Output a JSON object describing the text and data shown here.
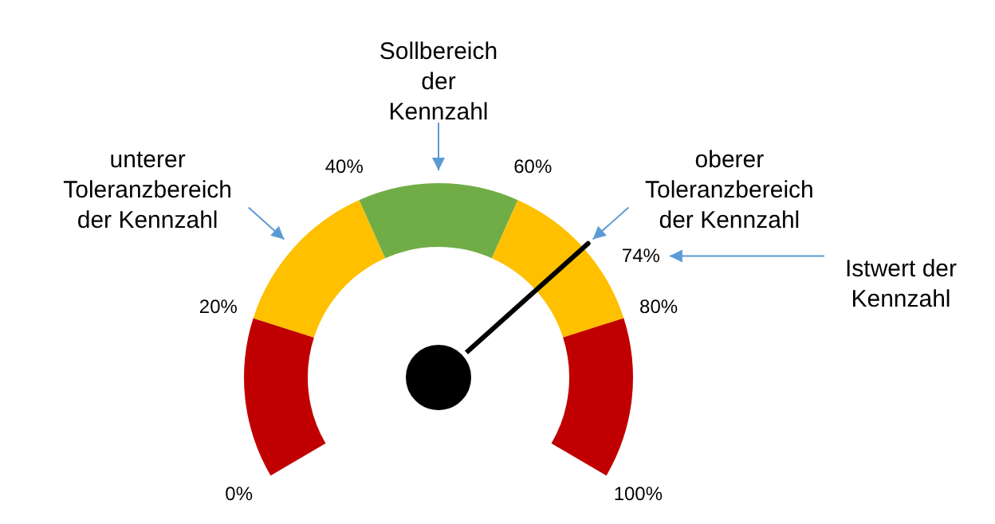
{
  "chart_data": {
    "type": "donut",
    "categories": [
      null,
      "unterer\nToleranzbereich\nder Kennzahl",
      "Sollbereich\nder\nKennzahl",
      "oberer\nToleranzbereich\nder Kennzahl",
      null
    ],
    "values": [
      20,
      20,
      20,
      20,
      20
    ],
    "colors": [
      "#c00000",
      "#ffc000",
      "#70ad47",
      "#ffc000",
      "#c00000"
    ],
    "needle": "oberer\nToleranzbereich\nder Kennzahl",
    "annotations": [
      "0%",
      "20%",
      "40%",
      "60%",
      "80%",
      "100%",
      "74%",
      "Istwert der\nKennzahl"
    ]
  }
}
